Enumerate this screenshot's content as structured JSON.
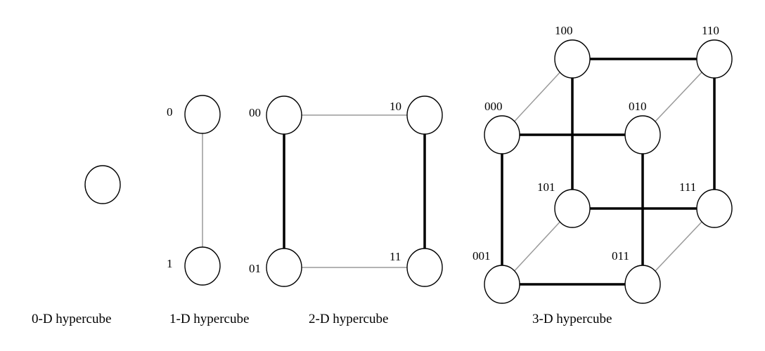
{
  "captions": {
    "d0": "0-D hypercube",
    "d1": "1-D hypercube",
    "d2": "2-D hypercube",
    "d3": "3-D hypercube"
  },
  "labels": {
    "d1": [
      "0",
      "1"
    ],
    "d2": [
      "00",
      "10",
      "01",
      "11"
    ],
    "d3": [
      "100",
      "110",
      "000",
      "010",
      "101",
      "111",
      "001",
      "011"
    ]
  },
  "colors": {
    "thin_edge": "#9a9a9a",
    "thick_edge": "#000000",
    "node_fill": "#ffffff"
  }
}
